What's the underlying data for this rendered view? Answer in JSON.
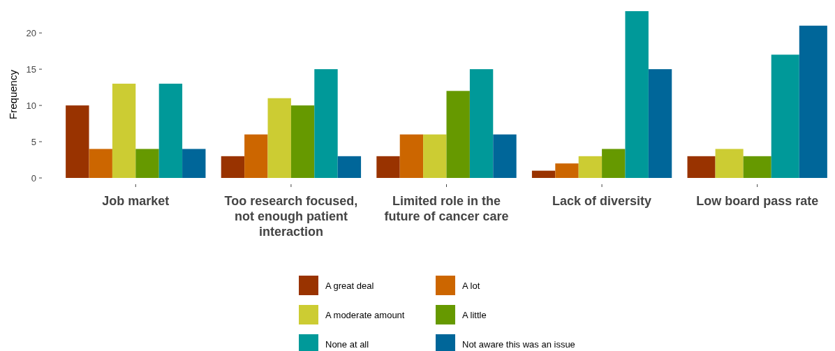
{
  "chart_data": {
    "type": "bar",
    "ylabel": "Frequency",
    "categories": [
      "Job market",
      "Too research focused, not enough patient interaction",
      "Limited role in the future of cancer care",
      "Lack of diversity",
      "Low board pass rate"
    ],
    "series": [
      {
        "name": "A great deal",
        "color": "#993300",
        "values": [
          10,
          3,
          3,
          1,
          3
        ]
      },
      {
        "name": "A lot",
        "color": "#cc6600",
        "values": [
          4,
          6,
          6,
          2,
          null
        ]
      },
      {
        "name": "A moderate amount",
        "color": "#cccc33",
        "values": [
          13,
          11,
          6,
          3,
          4
        ]
      },
      {
        "name": "A little",
        "color": "#669900",
        "values": [
          4,
          10,
          12,
          4,
          3
        ]
      },
      {
        "name": "None at all",
        "color": "#009999",
        "values": [
          13,
          15,
          15,
          23,
          17
        ]
      },
      {
        "name": "Not aware this was an issue",
        "color": "#006699",
        "values": [
          4,
          3,
          6,
          15,
          21
        ]
      }
    ],
    "ylim": [
      0,
      23
    ],
    "yticks": [
      0,
      5,
      10,
      15,
      20
    ],
    "grid": false,
    "legend": "bottom"
  }
}
